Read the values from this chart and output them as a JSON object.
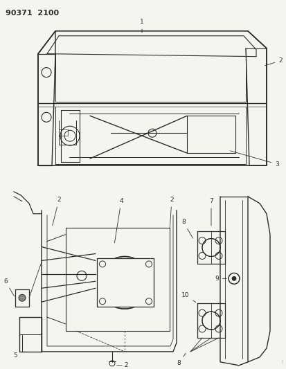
{
  "title": "90371  2100",
  "bg_color": "#f5f5f0",
  "line_color": "#2a2a2a",
  "fig_width": 4.14,
  "fig_height": 5.33,
  "dpi": 100
}
